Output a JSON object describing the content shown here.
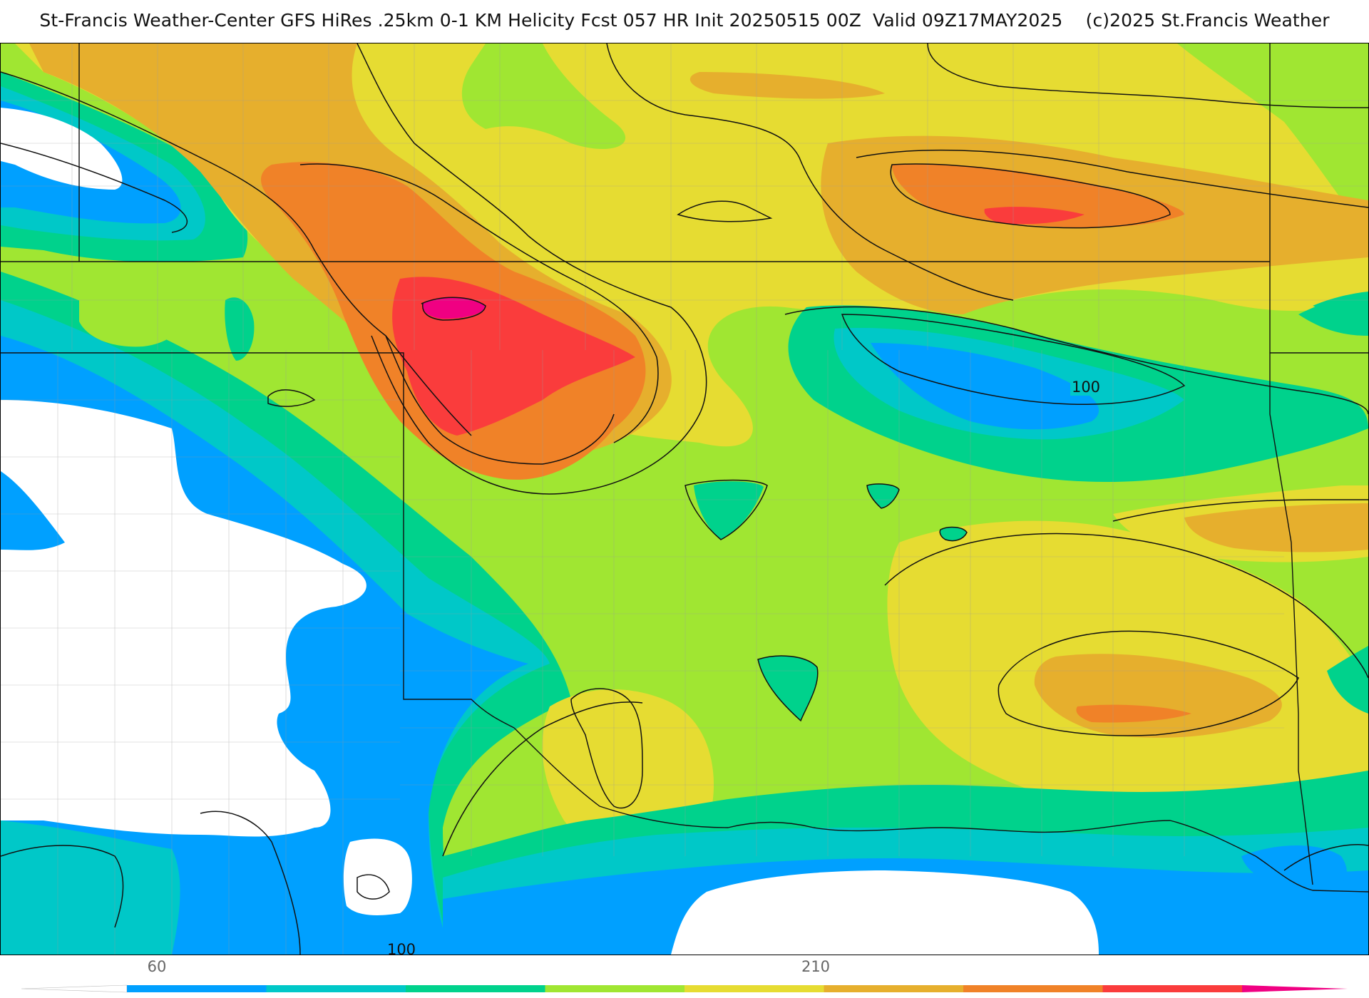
{
  "header": {
    "title": "St-Francis Weather-Center GFS HiRes .25km 0-1 KM Helicity Fcst 057 HR Init 20250515 00Z  Valid 09Z17MAY2025    (c)2025 St.Francis Weather"
  },
  "map": {
    "contour_labels": [
      "100",
      "100"
    ]
  },
  "colorbar": {
    "tick_labels": [
      "60",
      "210"
    ],
    "colors": [
      "#ffffff",
      "#00a0ff",
      "#00c8c8",
      "#00d28c",
      "#a0e632",
      "#e6dc32",
      "#e6af2d",
      "#f08228",
      "#fa3c3c",
      "#f00082"
    ]
  },
  "colors": {
    "white": "#ffffff",
    "blue": "#00a0ff",
    "teal": "#00c8c8",
    "green": "#00d28c",
    "lime": "#a0e632",
    "yellow": "#e6dc32",
    "gold": "#e6af2d",
    "orange": "#f08228",
    "red": "#fa3c3c",
    "magenta": "#f00082"
  }
}
